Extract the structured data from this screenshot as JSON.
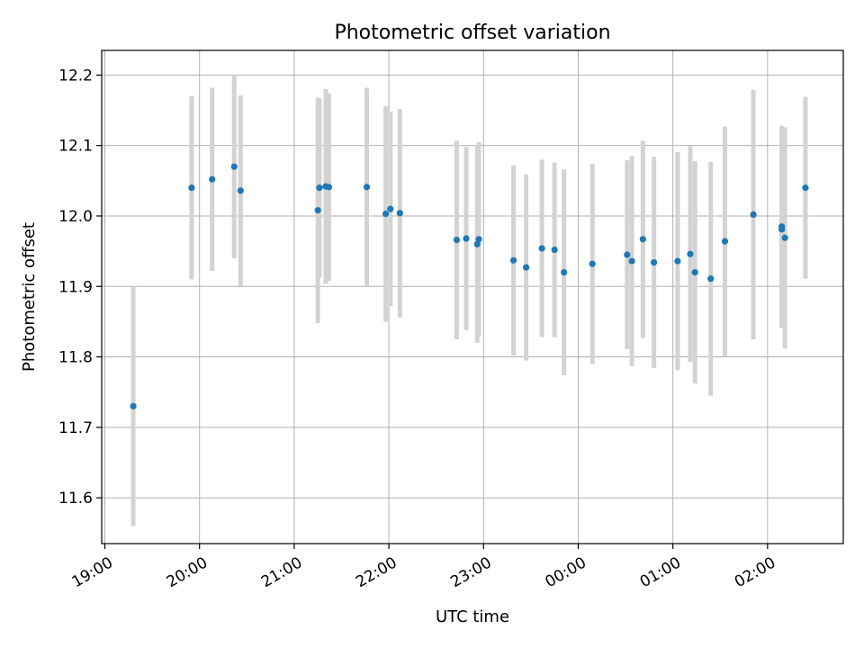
{
  "chart_data": {
    "type": "scatter",
    "title": "Photometric offset variation",
    "xlabel": "UTC time",
    "ylabel": "Photometric offset",
    "grid": true,
    "x_tick_labels": [
      "19:00",
      "20:00",
      "21:00",
      "22:00",
      "23:00",
      "00:00",
      "01:00",
      "02:00"
    ],
    "x_ticks": [
      "19:00",
      "20:00",
      "21:00",
      "22:00",
      "23:00",
      "24:00",
      "25:00",
      "26:00"
    ],
    "xlim": [
      "18:58",
      "26:48"
    ],
    "y_ticks": [
      11.6,
      11.7,
      11.8,
      11.9,
      12.0,
      12.1,
      12.2
    ],
    "y_tick_labels": [
      "11.6",
      "11.7",
      "11.8",
      "11.9",
      "12.0",
      "12.1",
      "12.2"
    ],
    "ylim": [
      11.535,
      12.235
    ],
    "point_color": "#1f77b4",
    "errorbar_color": "#d3d3d3",
    "series": [
      {
        "points": [
          {
            "x": "19:18",
            "y": 11.73,
            "yerr": 0.17
          },
          {
            "x": "19:55",
            "y": 12.04,
            "yerr": 0.13
          },
          {
            "x": "20:08",
            "y": 12.052,
            "yerr": 0.13
          },
          {
            "x": "20:22",
            "y": 12.07,
            "yerr": 0.13
          },
          {
            "x": "20:26",
            "y": 12.036,
            "yerr": 0.135
          },
          {
            "x": "21:15",
            "y": 12.008,
            "yerr": 0.16
          },
          {
            "x": "21:16",
            "y": 12.04,
            "yerr": 0.127
          },
          {
            "x": "21:20",
            "y": 12.042,
            "yerr": 0.138
          },
          {
            "x": "21:22",
            "y": 12.041,
            "yerr": 0.133
          },
          {
            "x": "21:46",
            "y": 12.041,
            "yerr": 0.141
          },
          {
            "x": "21:58",
            "y": 12.003,
            "yerr": 0.153
          },
          {
            "x": "22:01",
            "y": 12.01,
            "yerr": 0.138
          },
          {
            "x": "22:07",
            "y": 12.004,
            "yerr": 0.148
          },
          {
            "x": "22:43",
            "y": 11.966,
            "yerr": 0.141
          },
          {
            "x": "22:49",
            "y": 11.968,
            "yerr": 0.13
          },
          {
            "x": "22:56",
            "y": 11.96,
            "yerr": 0.14
          },
          {
            "x": "22:57",
            "y": 11.967,
            "yerr": 0.138
          },
          {
            "x": "23:19",
            "y": 11.937,
            "yerr": 0.135
          },
          {
            "x": "23:27",
            "y": 11.927,
            "yerr": 0.132
          },
          {
            "x": "23:37",
            "y": 11.954,
            "yerr": 0.126
          },
          {
            "x": "23:45",
            "y": 11.952,
            "yerr": 0.124
          },
          {
            "x": "23:51",
            "y": 11.92,
            "yerr": 0.146
          },
          {
            "x": "24:09",
            "y": 11.932,
            "yerr": 0.142
          },
          {
            "x": "24:31",
            "y": 11.945,
            "yerr": 0.134
          },
          {
            "x": "24:34",
            "y": 11.936,
            "yerr": 0.149
          },
          {
            "x": "24:41",
            "y": 11.967,
            "yerr": 0.14
          },
          {
            "x": "24:48",
            "y": 11.934,
            "yerr": 0.15
          },
          {
            "x": "25:03",
            "y": 11.936,
            "yerr": 0.155
          },
          {
            "x": "25:11",
            "y": 11.946,
            "yerr": 0.153
          },
          {
            "x": "25:14",
            "y": 11.92,
            "yerr": 0.158
          },
          {
            "x": "25:24",
            "y": 11.911,
            "yerr": 0.166
          },
          {
            "x": "25:33",
            "y": 11.964,
            "yerr": 0.163
          },
          {
            "x": "25:51",
            "y": 12.002,
            "yerr": 0.177
          },
          {
            "x": "26:09",
            "y": 11.981,
            "yerr": 0.14
          },
          {
            "x": "26:09",
            "y": 11.985,
            "yerr": 0.143
          },
          {
            "x": "26:11",
            "y": 11.969,
            "yerr": 0.157
          },
          {
            "x": "26:24",
            "y": 12.04,
            "yerr": 0.129
          }
        ]
      }
    ]
  }
}
